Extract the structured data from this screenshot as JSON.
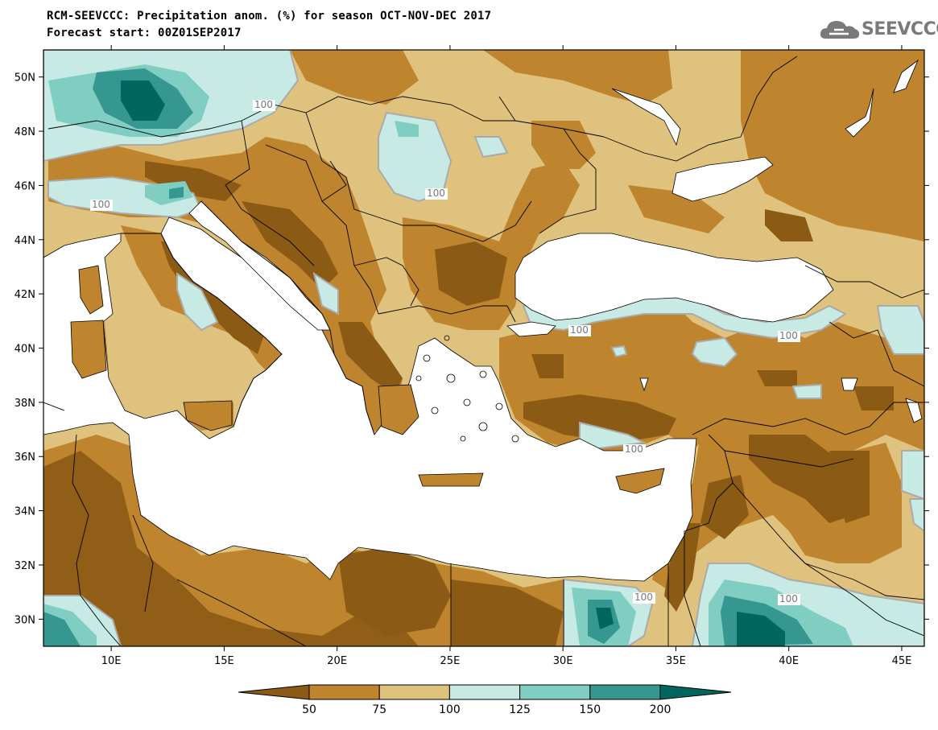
{
  "title_line1": "RCM-SEEVCCC: Precipitation anom. (%) for season OCT-NOV-DEC 2017",
  "title_line2": "Forecast start: 00Z01SEP2017",
  "logo_text": "SEEVCCC",
  "map": {
    "lon_range": [
      7,
      46
    ],
    "lat_range": [
      29,
      51
    ],
    "lon_ticks": [
      "10E",
      "15E",
      "20E",
      "25E",
      "30E",
      "35E",
      "40E",
      "45E"
    ],
    "lat_ticks": [
      "50N",
      "48N",
      "46N",
      "44N",
      "42N",
      "40N",
      "38N",
      "36N",
      "34N",
      "32N",
      "30N"
    ],
    "contour_labels": [
      "100",
      "100",
      "100",
      "100",
      "100",
      "100",
      "100",
      "100"
    ]
  },
  "legend": {
    "colors": [
      "#8b5a14",
      "#bf842e",
      "#dfc27d",
      "#c7eae5",
      "#80cdc1",
      "#35978f",
      "#01665e"
    ],
    "labels": [
      "50",
      "75",
      "100",
      "125",
      "150",
      "200"
    ]
  }
}
